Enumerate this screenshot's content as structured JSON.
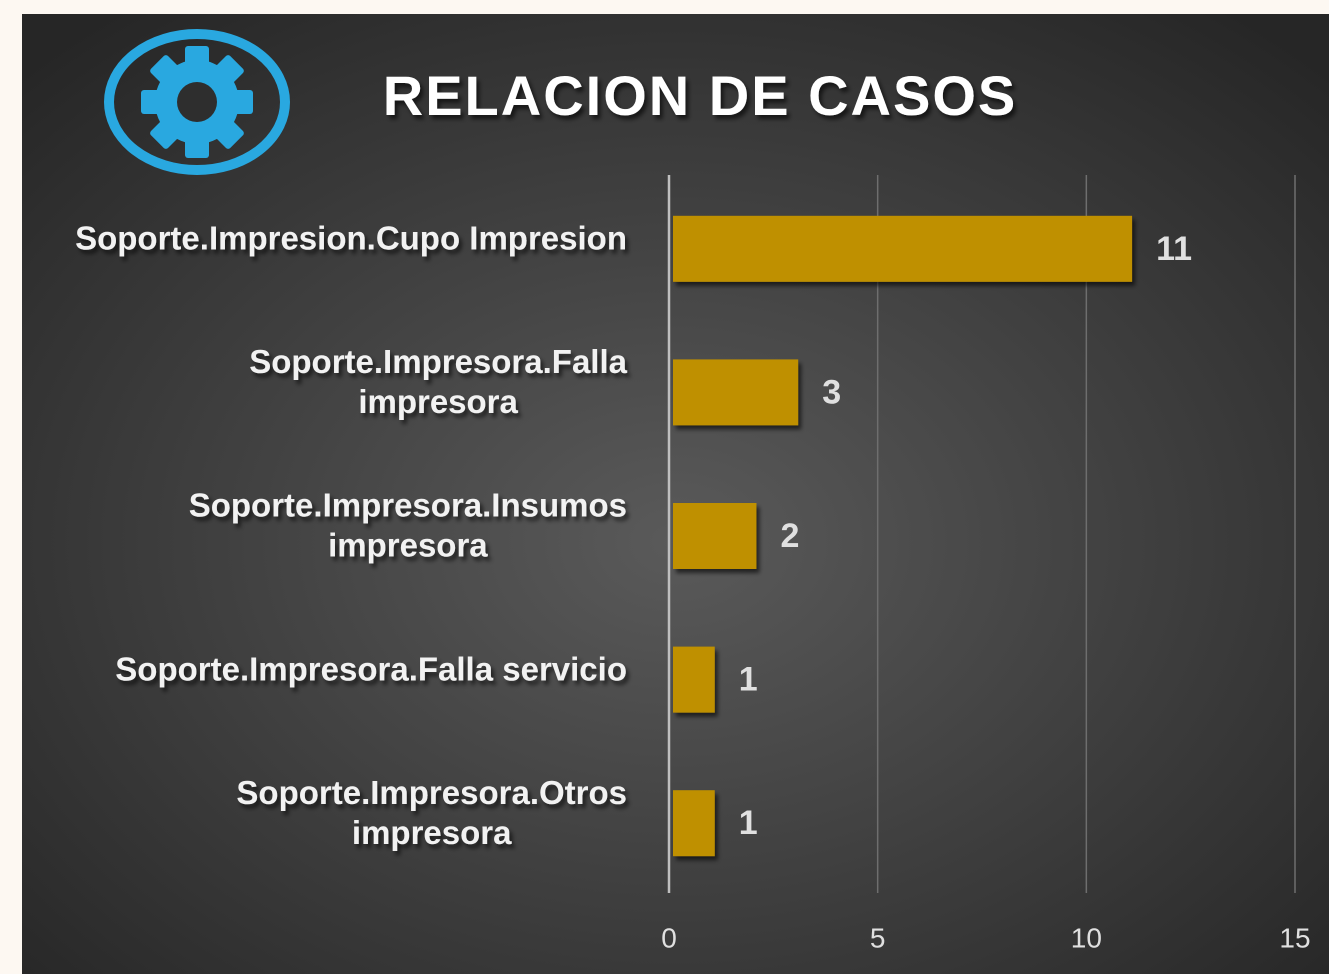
{
  "chart_data": {
    "type": "bar",
    "orientation": "horizontal",
    "title": "RELACION DE CASOS",
    "categories": [
      [
        "Soporte.Impresion.Cupo Impresion"
      ],
      [
        "Soporte.Impresora.Falla",
        "impresora"
      ],
      [
        "Soporte.Impresora.Insumos",
        "impresora"
      ],
      [
        "Soporte.Impresora.Falla servicio"
      ],
      [
        "Soporte.Impresora.Otros",
        "impresora"
      ]
    ],
    "values": [
      11,
      3,
      2,
      1,
      1
    ],
    "color": "#bf9000",
    "xlim": [
      0,
      15
    ],
    "xticks": [
      0,
      5,
      10,
      15
    ],
    "grid": true
  }
}
